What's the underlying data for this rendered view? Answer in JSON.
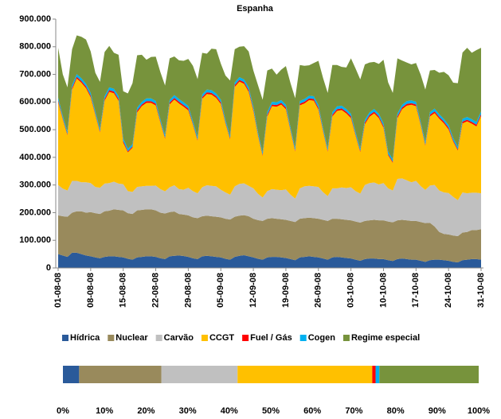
{
  "chart_data": [
    {
      "type": "stacked-area",
      "title": "Espanha",
      "categories": [
        "01-08-08",
        null,
        null,
        null,
        null,
        null,
        null,
        "08-08-08",
        null,
        null,
        null,
        null,
        null,
        null,
        "15-08-08",
        null,
        null,
        null,
        null,
        null,
        null,
        "22-08-08",
        null,
        null,
        null,
        null,
        null,
        null,
        "29-08-08",
        null,
        null,
        null,
        null,
        null,
        null,
        "05-09-08",
        null,
        null,
        null,
        null,
        null,
        null,
        "12-09-08",
        null,
        null,
        null,
        null,
        null,
        null,
        "19-09-08",
        null,
        null,
        null,
        null,
        null,
        null,
        "26-09-08",
        null,
        null,
        null,
        null,
        null,
        null,
        "03-10-08",
        null,
        null,
        null,
        null,
        null,
        null,
        "10-10-08",
        null,
        null,
        null,
        null,
        null,
        null,
        "17-10-08",
        null,
        null,
        null,
        null,
        null,
        null,
        "24-10-08",
        null,
        null,
        null,
        null,
        null,
        null,
        "31-10-08"
      ],
      "ylim": [
        0,
        900000
      ],
      "yticks": [
        0,
        {
          "value": 100000,
          "label": "100.000"
        },
        {
          "value": 200000,
          "label": "200.000"
        },
        {
          "value": 300000,
          "label": "300.000"
        },
        {
          "value": 400000,
          "label": "400.000"
        },
        {
          "value": 500000,
          "label": "500.000"
        },
        {
          "value": 600000,
          "label": "600.000"
        },
        {
          "value": 700000,
          "label": "700.000"
        },
        {
          "value": 800000,
          "label": "800.000"
        },
        {
          "value": 900000,
          "label": "900.000"
        }
      ],
      "grid": false,
      "series": [
        {
          "name": "Hídrica",
          "color": "#2a5a9a",
          "values": [
            50000,
            45000,
            40000,
            55000,
            55000,
            50000,
            45000,
            42000,
            38000,
            35000,
            40000,
            42000,
            42000,
            40000,
            38000,
            33000,
            30000,
            38000,
            40000,
            42000,
            42000,
            40000,
            35000,
            32000,
            42000,
            44000,
            45000,
            43000,
            40000,
            35000,
            32000,
            42000,
            44000,
            42000,
            40000,
            38000,
            33000,
            30000,
            40000,
            44000,
            46000,
            42000,
            38000,
            33000,
            30000,
            38000,
            40000,
            40000,
            38000,
            36000,
            32000,
            28000,
            38000,
            40000,
            42000,
            40000,
            38000,
            34000,
            30000,
            38000,
            40000,
            38000,
            36000,
            34000,
            30000,
            26000,
            32000,
            34000,
            34000,
            32000,
            32000,
            28000,
            25000,
            32000,
            34000,
            32000,
            30000,
            30000,
            26000,
            22000,
            28000,
            30000,
            30000,
            28000,
            26000,
            22000,
            20000,
            28000,
            30000,
            32000,
            32000,
            30000
          ]
        },
        {
          "name": "Nuclear",
          "color": "#998a5c",
          "values": [
            140000,
            142000,
            145000,
            145000,
            150000,
            155000,
            155000,
            160000,
            160000,
            160000,
            165000,
            165000,
            170000,
            170000,
            170000,
            165000,
            165000,
            170000,
            170000,
            170000,
            170000,
            168000,
            165000,
            165000,
            160000,
            160000,
            150000,
            150000,
            150000,
            148000,
            148000,
            145000,
            145000,
            145000,
            145000,
            145000,
            145000,
            145000,
            145000,
            145000,
            145000,
            145000,
            140000,
            140000,
            140000,
            140000,
            140000,
            138000,
            138000,
            138000,
            138000,
            138000,
            140000,
            140000,
            140000,
            140000,
            140000,
            140000,
            140000,
            140000,
            138000,
            138000,
            138000,
            138000,
            138000,
            138000,
            138000,
            138000,
            140000,
            140000,
            140000,
            140000,
            140000,
            140000,
            140000,
            140000,
            140000,
            140000,
            140000,
            140000,
            135000,
            120000,
            100000,
            95000,
            95000,
            95000,
            95000,
            100000,
            100000,
            105000,
            105000,
            110000
          ]
        },
        {
          "name": "Carvão",
          "color": "#c0c0c0",
          "values": [
            110000,
            100000,
            95000,
            115000,
            110000,
            105000,
            110000,
            105000,
            95000,
            95000,
            100000,
            100000,
            100000,
            95000,
            95000,
            80000,
            80000,
            85000,
            85000,
            85000,
            85000,
            90000,
            85000,
            80000,
            90000,
            95000,
            90000,
            90000,
            100000,
            95000,
            90000,
            105000,
            110000,
            110000,
            110000,
            100000,
            95000,
            90000,
            110000,
            115000,
            115000,
            110000,
            110000,
            95000,
            85000,
            100000,
            105000,
            105000,
            105000,
            110000,
            95000,
            85000,
            110000,
            115000,
            115000,
            115000,
            115000,
            100000,
            90000,
            110000,
            110000,
            115000,
            115000,
            120000,
            110000,
            105000,
            130000,
            135000,
            135000,
            130000,
            135000,
            120000,
            115000,
            150000,
            150000,
            145000,
            140000,
            145000,
            130000,
            120000,
            135000,
            150000,
            150000,
            150000,
            150000,
            140000,
            130000,
            145000,
            140000,
            135000,
            135000,
            130000
          ]
        },
        {
          "name": "CCGT",
          "color": "#ffc000",
          "values": [
            300000,
            250000,
            200000,
            330000,
            370000,
            360000,
            340000,
            310000,
            260000,
            200000,
            300000,
            330000,
            320000,
            300000,
            150000,
            140000,
            160000,
            270000,
            290000,
            300000,
            300000,
            290000,
            240000,
            190000,
            300000,
            310000,
            310000,
            300000,
            280000,
            240000,
            190000,
            320000,
            330000,
            330000,
            320000,
            310000,
            250000,
            200000,
            360000,
            370000,
            360000,
            340000,
            280000,
            210000,
            150000,
            270000,
            300000,
            300000,
            310000,
            290000,
            230000,
            170000,
            300000,
            300000,
            310000,
            310000,
            280000,
            220000,
            160000,
            260000,
            280000,
            280000,
            270000,
            250000,
            200000,
            150000,
            220000,
            240000,
            250000,
            240000,
            200000,
            120000,
            100000,
            220000,
            250000,
            270000,
            280000,
            270000,
            220000,
            160000,
            250000,
            260000,
            260000,
            250000,
            230000,
            200000,
            180000,
            250000,
            260000,
            250000,
            240000,
            280000
          ]
        },
        {
          "name": "Fuel / Gás",
          "color": "#ff0000",
          "values": [
            6000,
            4000,
            4000,
            6000,
            6000,
            6000,
            6000,
            6000,
            4000,
            4000,
            6000,
            6000,
            6000,
            6000,
            6000,
            4000,
            4000,
            6000,
            6000,
            6000,
            6000,
            6000,
            4000,
            4000,
            6000,
            6000,
            6000,
            6000,
            6000,
            4000,
            4000,
            6000,
            6000,
            6000,
            6000,
            6000,
            4000,
            4000,
            6000,
            6000,
            6000,
            6000,
            6000,
            4000,
            4000,
            6000,
            6000,
            6000,
            6000,
            6000,
            4000,
            4000,
            6000,
            6000,
            6000,
            6000,
            6000,
            4000,
            4000,
            6000,
            6000,
            6000,
            6000,
            6000,
            4000,
            4000,
            6000,
            6000,
            6000,
            6000,
            6000,
            4000,
            4000,
            6000,
            6000,
            6000,
            6000,
            6000,
            4000,
            4000,
            6000,
            6000,
            6000,
            6000,
            6000,
            4000,
            4000,
            6000,
            6000,
            6000,
            6000,
            6000
          ]
        },
        {
          "name": "Cogen",
          "color": "#00b0f0",
          "values": [
            10000,
            9000,
            9000,
            10000,
            10000,
            10000,
            10000,
            10000,
            9000,
            9000,
            10000,
            10000,
            10000,
            10000,
            10000,
            9000,
            9000,
            10000,
            10000,
            10000,
            10000,
            10000,
            9000,
            9000,
            10000,
            10000,
            10000,
            10000,
            10000,
            9000,
            9000,
            10000,
            10000,
            10000,
            10000,
            10000,
            9000,
            9000,
            10000,
            10000,
            10000,
            10000,
            10000,
            9000,
            9000,
            10000,
            10000,
            10000,
            10000,
            10000,
            9000,
            9000,
            10000,
            10000,
            10000,
            10000,
            10000,
            9000,
            9000,
            10000,
            10000,
            10000,
            10000,
            10000,
            9000,
            9000,
            10000,
            10000,
            10000,
            10000,
            10000,
            9000,
            9000,
            10000,
            10000,
            10000,
            10000,
            10000,
            9000,
            9000,
            10000,
            10000,
            10000,
            10000,
            10000,
            9000,
            9000,
            10000,
            10000,
            10000,
            10000,
            10000
          ]
        },
        {
          "name": "Regime especial",
          "color": "#77933c",
          "values": [
            180000,
            150000,
            160000,
            130000,
            140000,
            150000,
            160000,
            150000,
            140000,
            170000,
            160000,
            150000,
            130000,
            150000,
            170000,
            200000,
            220000,
            190000,
            170000,
            140000,
            150000,
            160000,
            170000,
            180000,
            150000,
            140000,
            140000,
            150000,
            170000,
            200000,
            210000,
            150000,
            130000,
            150000,
            160000,
            130000,
            160000,
            200000,
            120000,
            110000,
            120000,
            130000,
            130000,
            170000,
            190000,
            150000,
            120000,
            100000,
            110000,
            140000,
            160000,
            180000,
            130000,
            120000,
            110000,
            120000,
            160000,
            180000,
            200000,
            170000,
            150000,
            140000,
            150000,
            200000,
            230000,
            250000,
            200000,
            180000,
            170000,
            180000,
            230000,
            250000,
            240000,
            200000,
            160000,
            140000,
            130000,
            140000,
            170000,
            190000,
            150000,
            140000,
            150000,
            170000,
            180000,
            200000,
            230000,
            240000,
            250000,
            240000,
            260000,
            230000
          ]
        }
      ]
    },
    {
      "type": "stacked-bar-100",
      "xlim": [
        0,
        100
      ],
      "xticks": [
        {
          "value": 0,
          "label": "0%"
        },
        {
          "value": 10,
          "label": "10%"
        },
        {
          "value": 20,
          "label": "20%"
        },
        {
          "value": 30,
          "label": "30%"
        },
        {
          "value": 40,
          "label": "40%"
        },
        {
          "value": 50,
          "label": "50%"
        },
        {
          "value": 60,
          "label": "60%"
        },
        {
          "value": 70,
          "label": "70%"
        },
        {
          "value": 80,
          "label": "80%"
        },
        {
          "value": 90,
          "label": "90%"
        },
        {
          "value": 100,
          "label": "100%"
        }
      ],
      "series": [
        {
          "color": "#2a5a9a",
          "values": [
            3.9
          ]
        },
        {
          "color": "#998a5c",
          "values": [
            19.8
          ]
        },
        {
          "color": "#c0c0c0",
          "values": [
            18.3
          ]
        },
        {
          "color": "#ffc000",
          "values": [
            32.4
          ]
        },
        {
          "color": "#ff0000",
          "values": [
            0.8
          ]
        },
        {
          "color": "#00b0f0",
          "values": [
            0.9
          ]
        },
        {
          "color": "#77933c",
          "values": [
            23.9
          ]
        }
      ]
    }
  ]
}
